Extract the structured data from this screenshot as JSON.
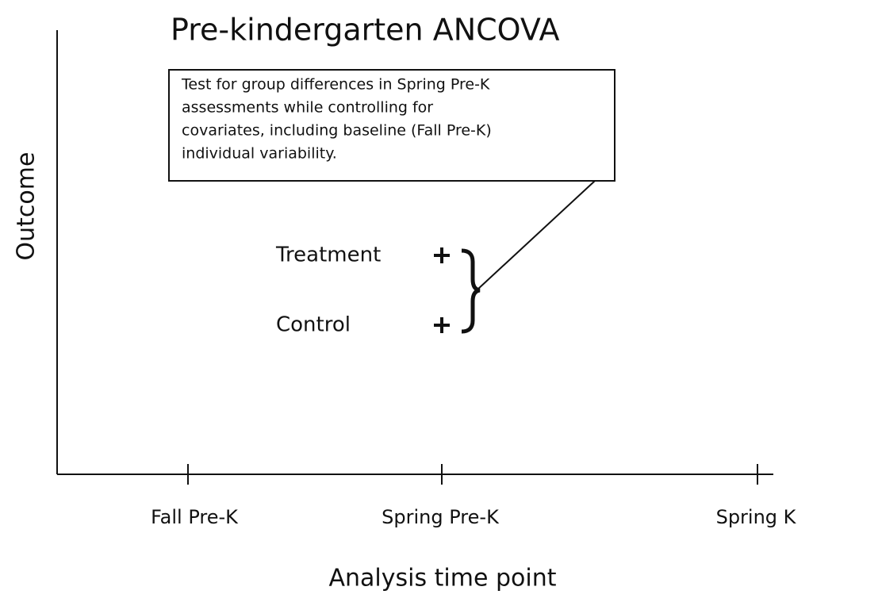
{
  "title": "Pre-kindergarten ANCOVA",
  "y_axis_label": "Outcome",
  "x_axis_label": "Analysis time point",
  "time_points": [
    "Fall Pre-K",
    "Spring Pre-K",
    "Spring K"
  ],
  "annotation": {
    "lines": [
      "Test for group differences in Spring Pre-K",
      "assessments while controlling for",
      "covariates, including baseline (Fall Pre-K)",
      "individual variability."
    ]
  },
  "groups": [
    "Treatment",
    "Control"
  ]
}
